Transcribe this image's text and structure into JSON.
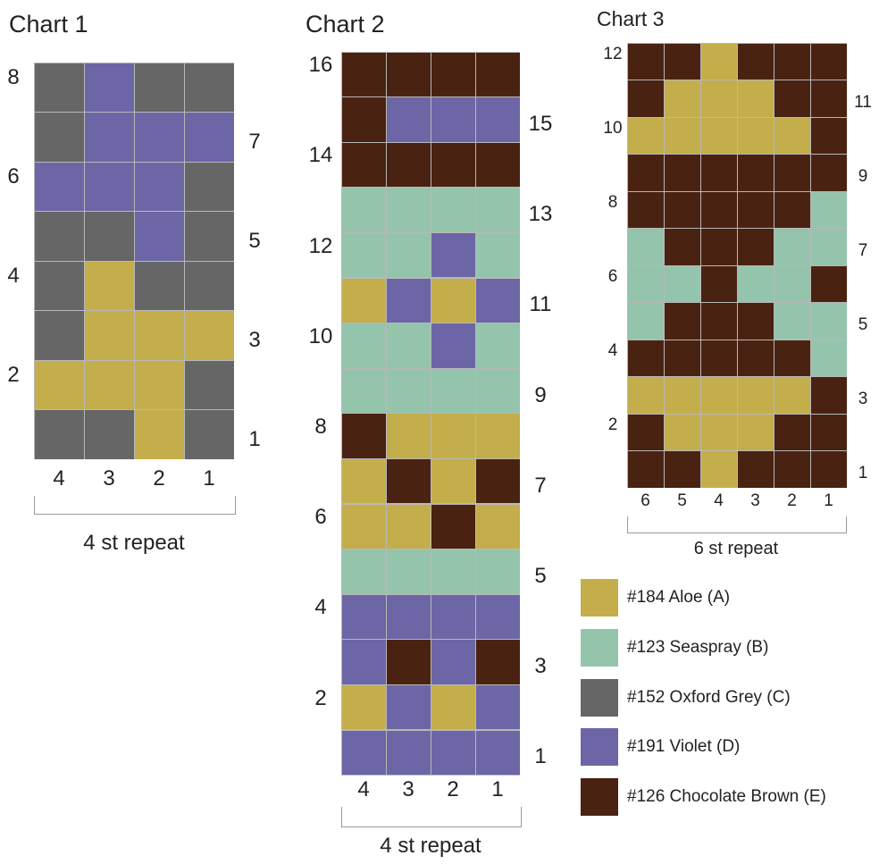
{
  "colors": {
    "A": "#c4ae4c",
    "B": "#94c4ac",
    "C": "#666666",
    "D": "#6c66a6",
    "E": "#4a2212"
  },
  "legend": [
    {
      "key": "A",
      "label": "#184 Aloe (A)"
    },
    {
      "key": "B",
      "label": "#123 Seaspray (B)"
    },
    {
      "key": "C",
      "label": "#152 Oxford Grey (C)"
    },
    {
      "key": "D",
      "label": "#191 Violet (D)"
    },
    {
      "key": "E",
      "label": "#126 Chocolate Brown (E)"
    }
  ],
  "charts": [
    {
      "title": "Chart 1",
      "repeat_label": "4 st repeat",
      "col_labels": [
        "4",
        "3",
        "2",
        "1"
      ],
      "rows_top_to_bottom": [
        [
          "C",
          "D",
          "C",
          "C"
        ],
        [
          "C",
          "D",
          "D",
          "D"
        ],
        [
          "D",
          "D",
          "D",
          "C"
        ],
        [
          "C",
          "C",
          "D",
          "C"
        ],
        [
          "C",
          "A",
          "C",
          "C"
        ],
        [
          "C",
          "A",
          "A",
          "A"
        ],
        [
          "A",
          "A",
          "A",
          "C"
        ],
        [
          "C",
          "C",
          "A",
          "C"
        ]
      ],
      "row_labels": [
        "8",
        "7",
        "6",
        "5",
        "4",
        "3",
        "2",
        "1"
      ]
    },
    {
      "title": "Chart 2",
      "repeat_label": "4 st repeat",
      "col_labels": [
        "4",
        "3",
        "2",
        "1"
      ],
      "rows_top_to_bottom": [
        [
          "E",
          "E",
          "E",
          "E"
        ],
        [
          "E",
          "D",
          "D",
          "D"
        ],
        [
          "E",
          "E",
          "E",
          "E"
        ],
        [
          "B",
          "B",
          "B",
          "B"
        ],
        [
          "B",
          "B",
          "D",
          "B"
        ],
        [
          "A",
          "D",
          "A",
          "D"
        ],
        [
          "B",
          "B",
          "D",
          "B"
        ],
        [
          "B",
          "B",
          "B",
          "B"
        ],
        [
          "E",
          "A",
          "A",
          "A"
        ],
        [
          "A",
          "E",
          "A",
          "E"
        ],
        [
          "A",
          "A",
          "E",
          "A"
        ],
        [
          "B",
          "B",
          "B",
          "B"
        ],
        [
          "D",
          "D",
          "D",
          "D"
        ],
        [
          "D",
          "E",
          "D",
          "E"
        ],
        [
          "A",
          "D",
          "A",
          "D"
        ],
        [
          "D",
          "D",
          "D",
          "D"
        ]
      ],
      "row_labels": [
        "16",
        "15",
        "14",
        "13",
        "12",
        "11",
        "10",
        "9",
        "8",
        "7",
        "6",
        "5",
        "4",
        "3",
        "2",
        "1"
      ]
    },
    {
      "title": "Chart 3",
      "repeat_label": "6 st repeat",
      "col_labels": [
        "6",
        "5",
        "4",
        "3",
        "2",
        "1"
      ],
      "rows_top_to_bottom": [
        [
          "E",
          "E",
          "A",
          "E",
          "E",
          "E"
        ],
        [
          "E",
          "A",
          "A",
          "A",
          "E",
          "E"
        ],
        [
          "A",
          "A",
          "A",
          "A",
          "A",
          "E"
        ],
        [
          "E",
          "E",
          "E",
          "E",
          "E",
          "E"
        ],
        [
          "E",
          "E",
          "E",
          "E",
          "E",
          "B"
        ],
        [
          "B",
          "E",
          "E",
          "E",
          "B",
          "B"
        ],
        [
          "B",
          "B",
          "E",
          "B",
          "B",
          "E"
        ],
        [
          "B",
          "E",
          "E",
          "E",
          "B",
          "B"
        ],
        [
          "E",
          "E",
          "E",
          "E",
          "E",
          "B"
        ],
        [
          "A",
          "A",
          "A",
          "A",
          "A",
          "E"
        ],
        [
          "E",
          "A",
          "A",
          "A",
          "E",
          "E"
        ],
        [
          "E",
          "E",
          "A",
          "E",
          "E",
          "E"
        ]
      ],
      "row_labels": [
        "12",
        "11",
        "10",
        "9",
        "8",
        "7",
        "6",
        "5",
        "4",
        "3",
        "2",
        "1"
      ]
    }
  ]
}
